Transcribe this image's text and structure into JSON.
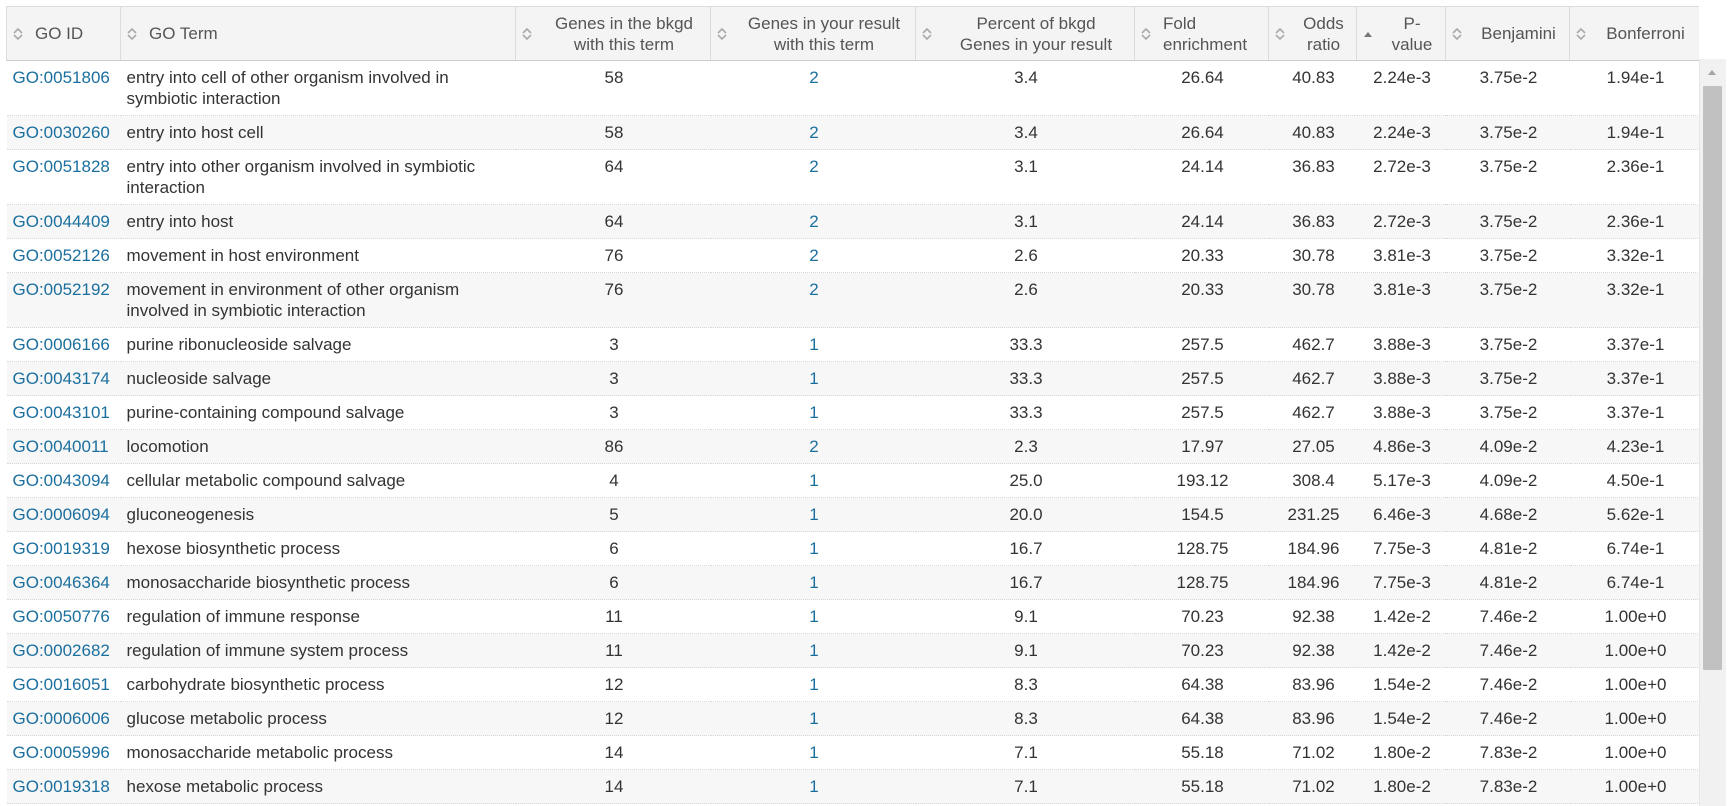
{
  "headers": {
    "go_id": "GO ID",
    "go_term": "GO Term",
    "bkgd_genes": [
      "Genes in the bkgd",
      "with this term"
    ],
    "result_genes": [
      "Genes in your result",
      "with this term"
    ],
    "percent": [
      "Percent of bkgd",
      "Genes in your result"
    ],
    "fold": [
      "Fold",
      "enrichment"
    ],
    "odds": [
      "Odds",
      "ratio"
    ],
    "pvalue": [
      "P-",
      "value"
    ],
    "benjamini": "Benjamini",
    "bonferroni": "Bonferroni"
  },
  "sort": {
    "column": "pvalue",
    "direction": "ascending"
  },
  "colors": {
    "link": "#1b6f9e",
    "header_bg": "#f4f4f4",
    "row_alt_bg": "#f7f7f7",
    "text": "#333333"
  },
  "rows": [
    {
      "id": "GO:0051806",
      "term": [
        "entry into cell of other organism involved in",
        "symbiotic interaction"
      ],
      "bkgd": "58",
      "result": "2",
      "percent": "3.4",
      "fold": "26.64",
      "odds": "40.83",
      "p": "2.24e-3",
      "benj": "3.75e-2",
      "bonf": "1.94e-1"
    },
    {
      "id": "GO:0030260",
      "term": [
        "entry into host cell"
      ],
      "bkgd": "58",
      "result": "2",
      "percent": "3.4",
      "fold": "26.64",
      "odds": "40.83",
      "p": "2.24e-3",
      "benj": "3.75e-2",
      "bonf": "1.94e-1"
    },
    {
      "id": "GO:0051828",
      "term": [
        "entry into other organism involved in symbiotic",
        "interaction"
      ],
      "bkgd": "64",
      "result": "2",
      "percent": "3.1",
      "fold": "24.14",
      "odds": "36.83",
      "p": "2.72e-3",
      "benj": "3.75e-2",
      "bonf": "2.36e-1"
    },
    {
      "id": "GO:0044409",
      "term": [
        "entry into host"
      ],
      "bkgd": "64",
      "result": "2",
      "percent": "3.1",
      "fold": "24.14",
      "odds": "36.83",
      "p": "2.72e-3",
      "benj": "3.75e-2",
      "bonf": "2.36e-1"
    },
    {
      "id": "GO:0052126",
      "term": [
        "movement in host environment"
      ],
      "bkgd": "76",
      "result": "2",
      "percent": "2.6",
      "fold": "20.33",
      "odds": "30.78",
      "p": "3.81e-3",
      "benj": "3.75e-2",
      "bonf": "3.32e-1"
    },
    {
      "id": "GO:0052192",
      "term": [
        "movement in environment of other organism",
        "involved in symbiotic interaction"
      ],
      "bkgd": "76",
      "result": "2",
      "percent": "2.6",
      "fold": "20.33",
      "odds": "30.78",
      "p": "3.81e-3",
      "benj": "3.75e-2",
      "bonf": "3.32e-1"
    },
    {
      "id": "GO:0006166",
      "term": [
        "purine ribonucleoside salvage"
      ],
      "bkgd": "3",
      "result": "1",
      "percent": "33.3",
      "fold": "257.5",
      "odds": "462.7",
      "p": "3.88e-3",
      "benj": "3.75e-2",
      "bonf": "3.37e-1"
    },
    {
      "id": "GO:0043174",
      "term": [
        "nucleoside salvage"
      ],
      "bkgd": "3",
      "result": "1",
      "percent": "33.3",
      "fold": "257.5",
      "odds": "462.7",
      "p": "3.88e-3",
      "benj": "3.75e-2",
      "bonf": "3.37e-1"
    },
    {
      "id": "GO:0043101",
      "term": [
        "purine-containing compound salvage"
      ],
      "bkgd": "3",
      "result": "1",
      "percent": "33.3",
      "fold": "257.5",
      "odds": "462.7",
      "p": "3.88e-3",
      "benj": "3.75e-2",
      "bonf": "3.37e-1"
    },
    {
      "id": "GO:0040011",
      "term": [
        "locomotion"
      ],
      "bkgd": "86",
      "result": "2",
      "percent": "2.3",
      "fold": "17.97",
      "odds": "27.05",
      "p": "4.86e-3",
      "benj": "4.09e-2",
      "bonf": "4.23e-1"
    },
    {
      "id": "GO:0043094",
      "term": [
        "cellular metabolic compound salvage"
      ],
      "bkgd": "4",
      "result": "1",
      "percent": "25.0",
      "fold": "193.12",
      "odds": "308.4",
      "p": "5.17e-3",
      "benj": "4.09e-2",
      "bonf": "4.50e-1"
    },
    {
      "id": "GO:0006094",
      "term": [
        "gluconeogenesis"
      ],
      "bkgd": "5",
      "result": "1",
      "percent": "20.0",
      "fold": "154.5",
      "odds": "231.25",
      "p": "6.46e-3",
      "benj": "4.68e-2",
      "bonf": "5.62e-1"
    },
    {
      "id": "GO:0019319",
      "term": [
        "hexose biosynthetic process"
      ],
      "bkgd": "6",
      "result": "1",
      "percent": "16.7",
      "fold": "128.75",
      "odds": "184.96",
      "p": "7.75e-3",
      "benj": "4.81e-2",
      "bonf": "6.74e-1"
    },
    {
      "id": "GO:0046364",
      "term": [
        "monosaccharide biosynthetic process"
      ],
      "bkgd": "6",
      "result": "1",
      "percent": "16.7",
      "fold": "128.75",
      "odds": "184.96",
      "p": "7.75e-3",
      "benj": "4.81e-2",
      "bonf": "6.74e-1"
    },
    {
      "id": "GO:0050776",
      "term": [
        "regulation of immune response"
      ],
      "bkgd": "11",
      "result": "1",
      "percent": "9.1",
      "fold": "70.23",
      "odds": "92.38",
      "p": "1.42e-2",
      "benj": "7.46e-2",
      "bonf": "1.00e+0"
    },
    {
      "id": "GO:0002682",
      "term": [
        "regulation of immune system process"
      ],
      "bkgd": "11",
      "result": "1",
      "percent": "9.1",
      "fold": "70.23",
      "odds": "92.38",
      "p": "1.42e-2",
      "benj": "7.46e-2",
      "bonf": "1.00e+0"
    },
    {
      "id": "GO:0016051",
      "term": [
        "carbohydrate biosynthetic process"
      ],
      "bkgd": "12",
      "result": "1",
      "percent": "8.3",
      "fold": "64.38",
      "odds": "83.96",
      "p": "1.54e-2",
      "benj": "7.46e-2",
      "bonf": "1.00e+0"
    },
    {
      "id": "GO:0006006",
      "term": [
        "glucose metabolic process"
      ],
      "bkgd": "12",
      "result": "1",
      "percent": "8.3",
      "fold": "64.38",
      "odds": "83.96",
      "p": "1.54e-2",
      "benj": "7.46e-2",
      "bonf": "1.00e+0"
    },
    {
      "id": "GO:0005996",
      "term": [
        "monosaccharide metabolic process"
      ],
      "bkgd": "14",
      "result": "1",
      "percent": "7.1",
      "fold": "55.18",
      "odds": "71.02",
      "p": "1.80e-2",
      "benj": "7.83e-2",
      "bonf": "1.00e+0"
    },
    {
      "id": "GO:0019318",
      "term": [
        "hexose metabolic process"
      ],
      "bkgd": "14",
      "result": "1",
      "percent": "7.1",
      "fold": "55.18",
      "odds": "71.02",
      "p": "1.80e-2",
      "benj": "7.83e-2",
      "bonf": "1.00e+0"
    }
  ]
}
